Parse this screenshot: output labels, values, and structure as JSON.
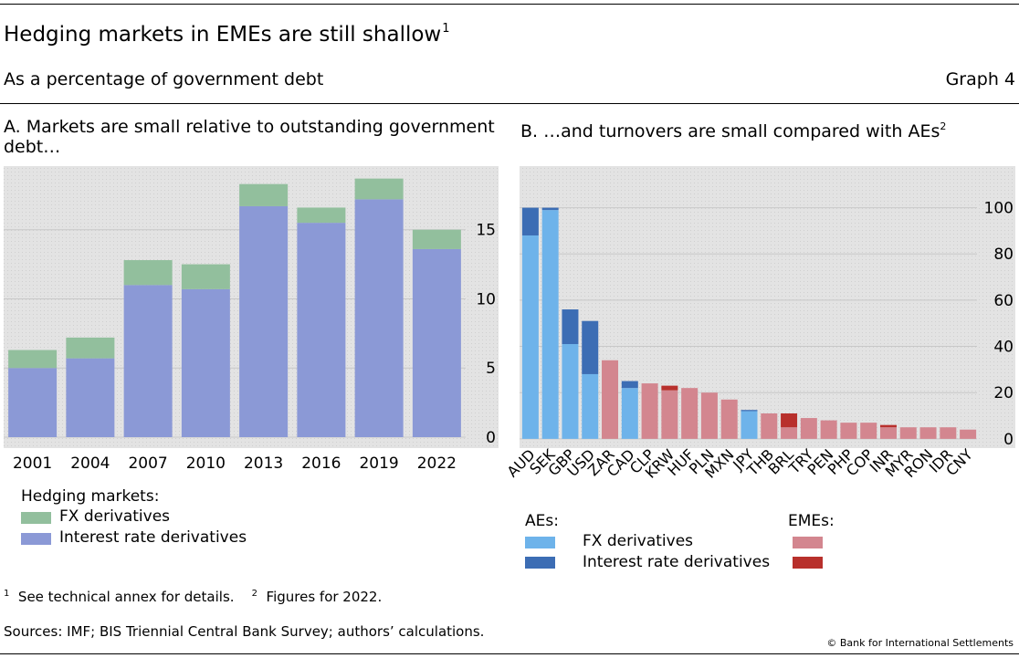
{
  "header": {
    "title": "Hedging markets in EMEs are still shallow",
    "title_note": "1",
    "subtitle": "As a percentage of government debt",
    "graph_label": "Graph 4"
  },
  "colors": {
    "fx_hedging": "#92bf9d",
    "ir_hedging": "#8b99d6",
    "ae_fx": "#6eb3ea",
    "ae_ir": "#3c6db4",
    "eme_fx": "#d3868f",
    "eme_ir": "#b8302c",
    "plot_bg": "#e6e6e6"
  },
  "panelA": {
    "title": "A. Markets are small relative to outstanding government debt…"
  },
  "panelB": {
    "title": "B. …and turnovers are small compared with AEs",
    "title_note": "2"
  },
  "legendA": {
    "heading": "Hedging markets:",
    "fx": "FX derivatives",
    "ir": "Interest rate derivatives"
  },
  "legendB": {
    "aes_heading": "AEs:",
    "emes_heading": "EMEs:",
    "fx": "FX derivatives",
    "ir": "Interest rate derivatives"
  },
  "footnotes": {
    "n1_mark": "1",
    "n1_text": "See technical annex for details.",
    "n2_mark": "2",
    "n2_text": "Figures for 2022.",
    "sources": "Sources: IMF; BIS Triennial Central Bank Survey; authors’ calculations.",
    "copyright": "© Bank for International Settlements"
  },
  "chart_data": [
    {
      "type": "bar",
      "stacked": true,
      "categories": [
        "2001",
        "2004",
        "2007",
        "2010",
        "2013",
        "2016",
        "2019",
        "2022"
      ],
      "series": [
        {
          "name": "Interest rate derivatives",
          "values": [
            5.0,
            5.7,
            11.0,
            10.7,
            16.7,
            15.5,
            17.2,
            13.6
          ]
        },
        {
          "name": "FX derivatives",
          "values": [
            1.3,
            1.5,
            1.8,
            1.8,
            1.6,
            1.1,
            1.5,
            1.4
          ]
        }
      ],
      "yticks": [
        0,
        5,
        10,
        15
      ],
      "ylim": [
        0,
        19.6
      ],
      "grid": true,
      "legend": "bottom-left"
    },
    {
      "type": "bar",
      "stacked": true,
      "categories": [
        "AUD",
        "SEK",
        "GBP",
        "USD",
        "ZAR",
        "CAD",
        "CLP",
        "KRW",
        "HUF",
        "PLN",
        "MXN",
        "JPY",
        "THB",
        "BRL",
        "TRY",
        "PEN",
        "PHP",
        "COP",
        "INR",
        "MYR",
        "RON",
        "IDR",
        "CNY"
      ],
      "groups": [
        "AE",
        "AE",
        "AE",
        "AE",
        "EME",
        "AE",
        "EME",
        "EME",
        "EME",
        "EME",
        "EME",
        "AE",
        "EME",
        "EME",
        "EME",
        "EME",
        "EME",
        "EME",
        "EME",
        "EME",
        "EME",
        "EME",
        "EME"
      ],
      "series": [
        {
          "name": "FX derivatives",
          "values": [
            88,
            99,
            41,
            28,
            34,
            22,
            24,
            21,
            22,
            20,
            17,
            12,
            11,
            5,
            9,
            8,
            7,
            7,
            5,
            5,
            5,
            5,
            4
          ]
        },
        {
          "name": "Interest rate derivatives",
          "values": [
            12,
            1,
            15,
            23,
            0,
            3,
            0,
            2,
            0,
            0,
            0,
            0.5,
            0,
            6,
            0,
            0,
            0,
            0,
            1,
            0,
            0,
            0,
            0
          ]
        }
      ],
      "yticks": [
        0,
        20,
        40,
        60,
        80,
        100
      ],
      "ylim": [
        -4,
        118
      ],
      "grid": true,
      "legend": "bottom"
    }
  ]
}
